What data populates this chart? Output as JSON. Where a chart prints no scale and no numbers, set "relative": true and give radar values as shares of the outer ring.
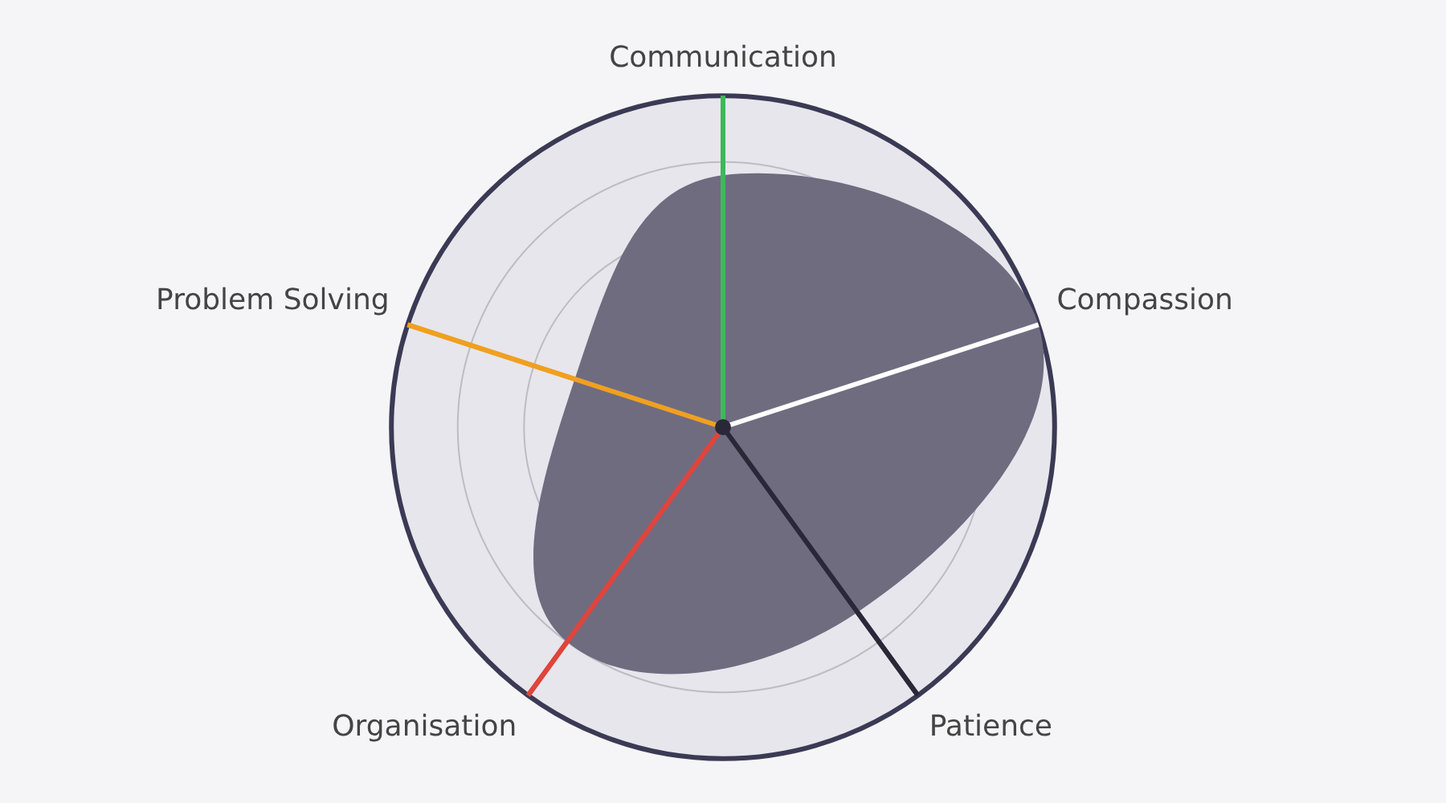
{
  "chart_data": {
    "type": "radar",
    "relative": true,
    "grid": true,
    "legend": false,
    "marker": "none",
    "categories": [
      "Communication",
      "Compassion",
      "Patience",
      "Organisation",
      "Problem Solving"
    ],
    "colors": [
      "#3cb95a",
      "#ffffff",
      "#2a2838",
      "#e0443c",
      "#f0a020"
    ],
    "series": [
      {
        "color": "#6f6c80",
        "values": [
          0.76,
          1,
          0.69,
          0.8,
          0.47
        ]
      }
    ]
  }
}
